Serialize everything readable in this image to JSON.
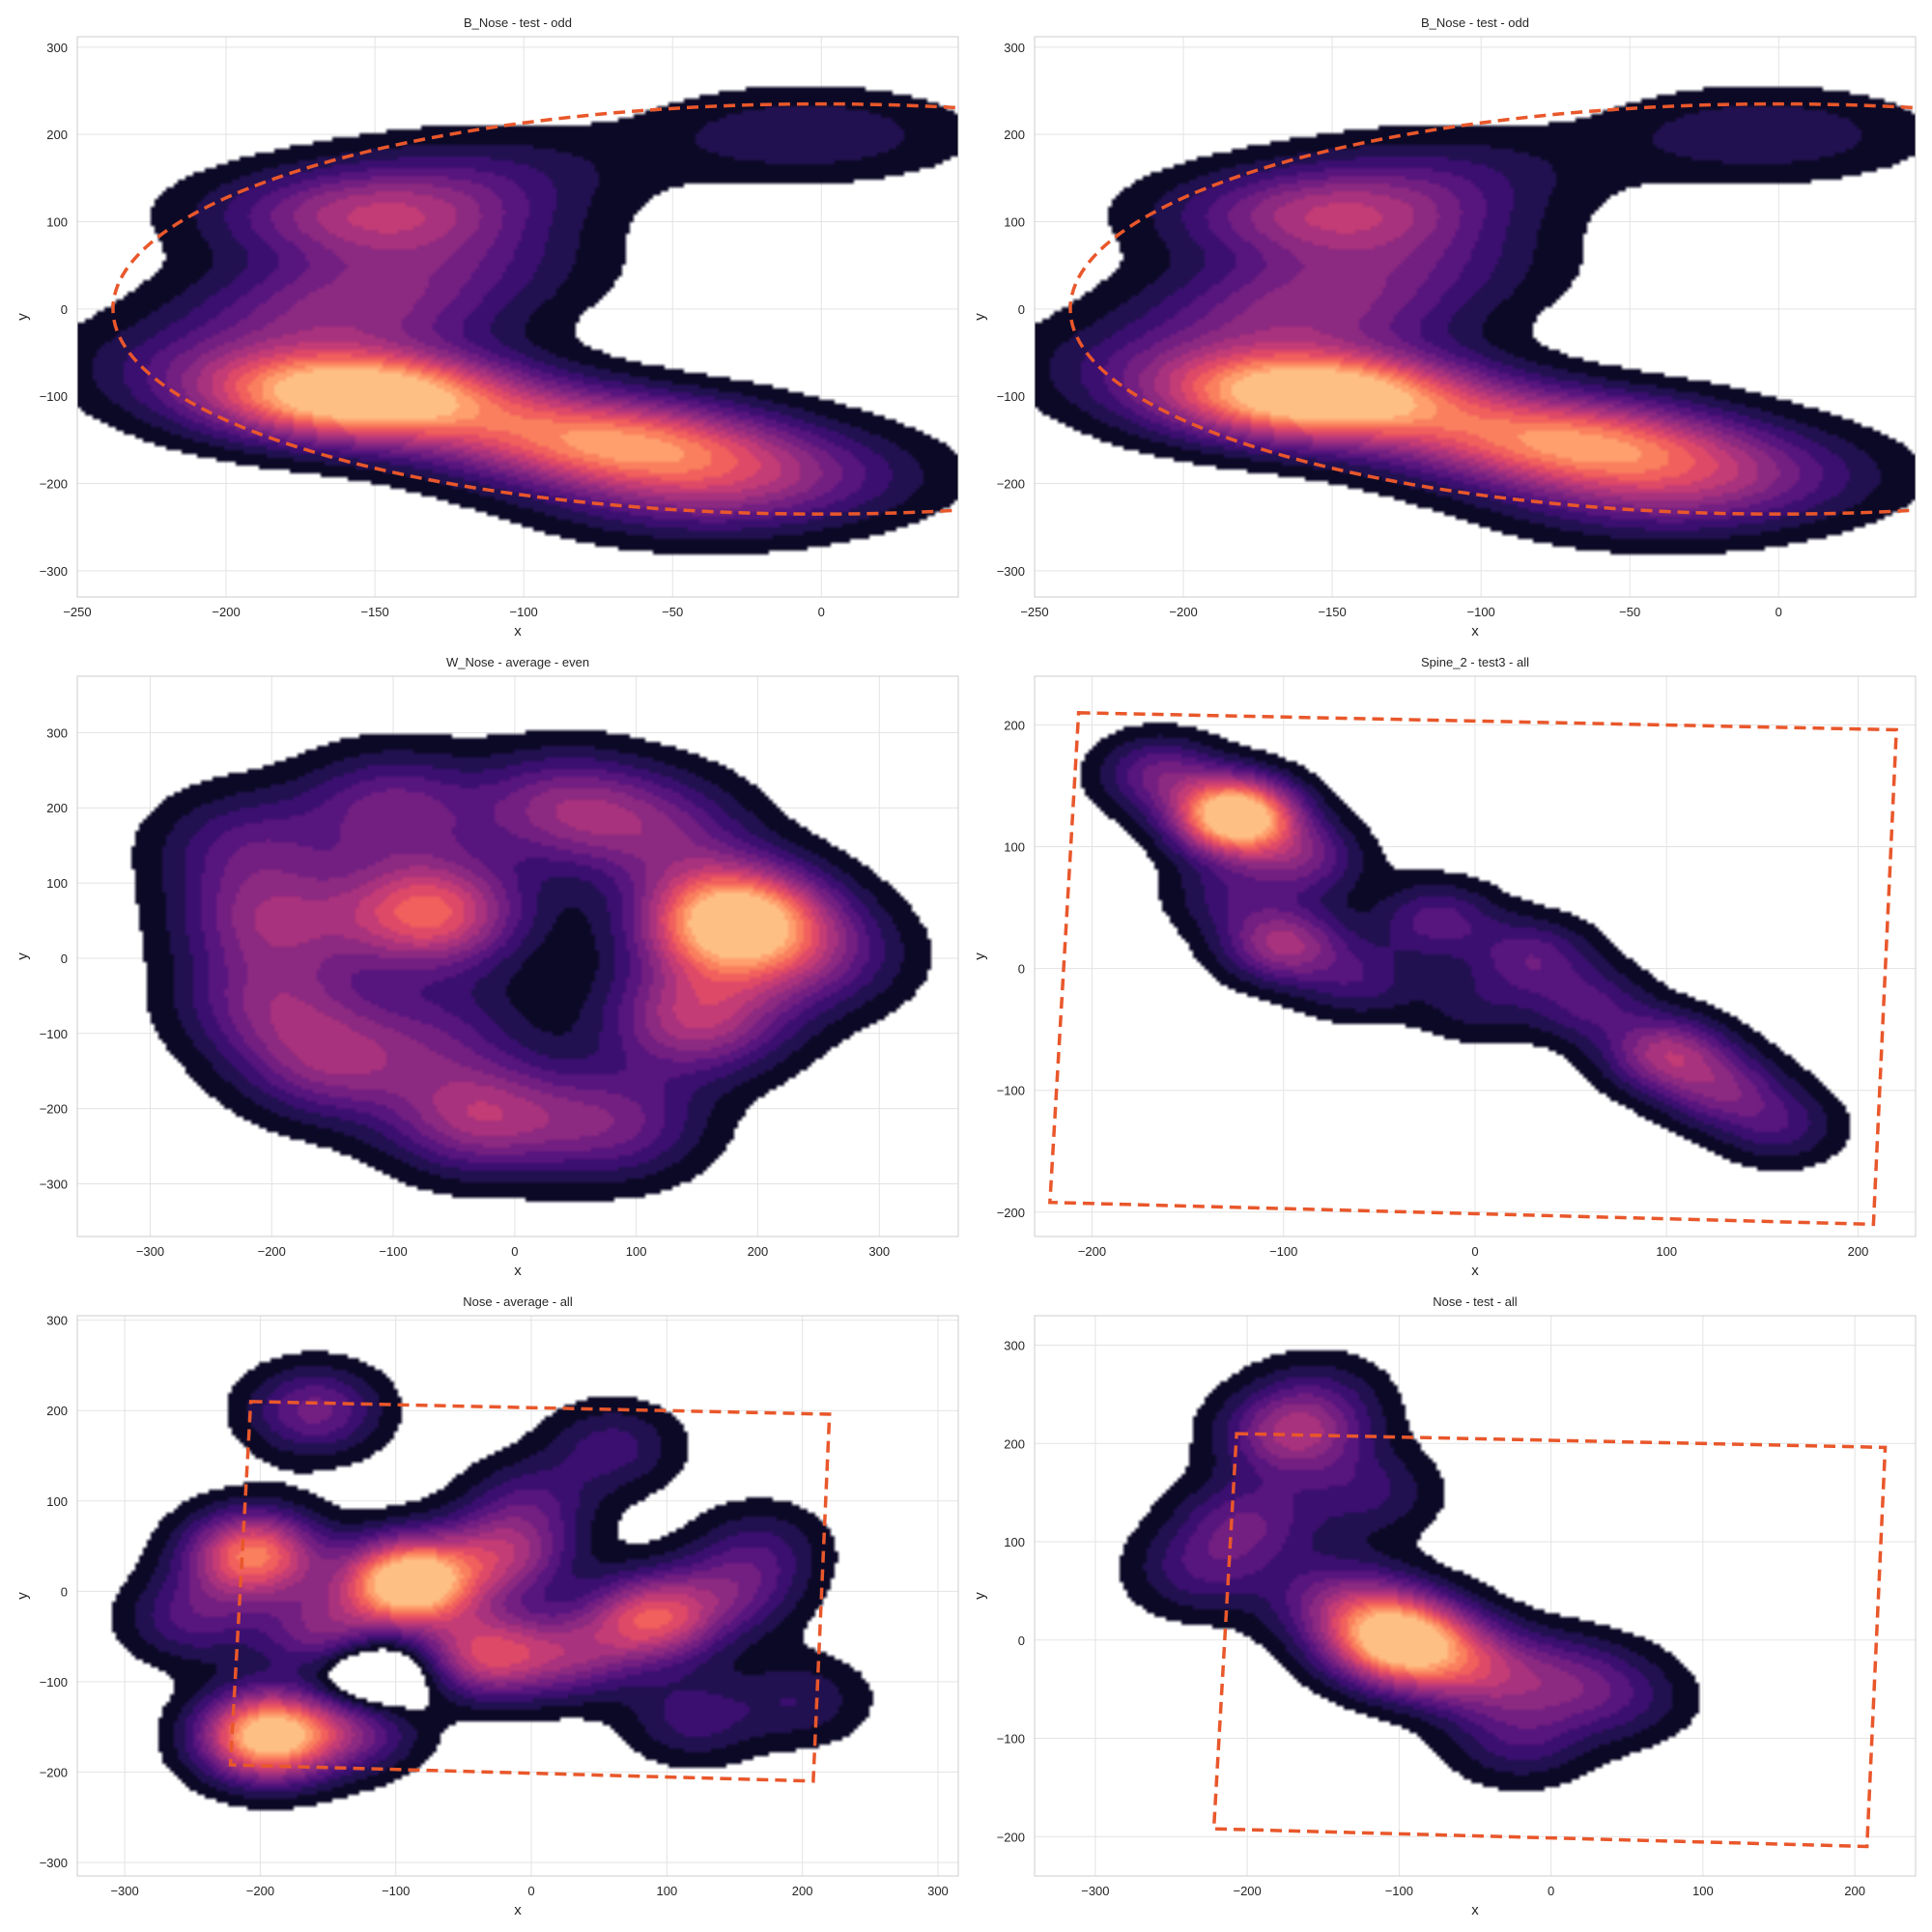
{
  "figure": {
    "layout": "3x2 grid of KDE density plots",
    "grid": true,
    "background": "#ffffff",
    "colormap": "magma",
    "overlay_color": "#e9572b"
  },
  "chart_data": [
    {
      "type": "kde-density",
      "title": "B_Nose - test - odd",
      "xlabel": "x",
      "ylabel": "y",
      "xlim": [
        -250,
        46
      ],
      "ylim": [
        -330,
        312
      ],
      "xticks": [
        "−250",
        "−200",
        "−150",
        "−100",
        "−50",
        "0"
      ],
      "yticks": [
        "−300",
        "−200",
        "−100",
        "0",
        "100",
        "200",
        "300"
      ],
      "boundary": {
        "shape": "ellipse",
        "cx": 0,
        "cy": 0,
        "rx": 238,
        "ry": 235,
        "style": "dashed"
      },
      "density": {
        "bandwidth": 36,
        "clusters": [
          [
            -155,
            -100,
            3.0
          ],
          [
            -150,
            110,
            1.4
          ],
          [
            -60,
            -160,
            1.5
          ],
          [
            -90,
            -140,
            1.0
          ],
          [
            -160,
            0,
            1.0
          ],
          [
            -200,
            -60,
            0.6
          ],
          [
            -40,
            -220,
            0.6
          ],
          [
            -15,
            -190,
            0.7
          ],
          [
            -5,
            200,
            0.55
          ],
          [
            -130,
            50,
            0.6
          ],
          [
            -110,
            160,
            0.4
          ]
        ]
      }
    },
    {
      "type": "kde-density",
      "title": "B_Nose - test - odd",
      "xlabel": "x",
      "ylabel": "y",
      "xlim": [
        -250,
        46
      ],
      "ylim": [
        -330,
        312
      ],
      "xticks": [
        "−250",
        "−200",
        "−150",
        "−100",
        "−50",
        "0"
      ],
      "yticks": [
        "−300",
        "−200",
        "−100",
        "0",
        "100",
        "200",
        "300"
      ],
      "boundary": {
        "shape": "ellipse",
        "cx": 0,
        "cy": 0,
        "rx": 238,
        "ry": 235,
        "style": "dashed"
      },
      "density": {
        "bandwidth": 36,
        "clusters": [
          [
            -155,
            -100,
            3.0
          ],
          [
            -150,
            110,
            1.4
          ],
          [
            -60,
            -160,
            1.5
          ],
          [
            -90,
            -140,
            1.0
          ],
          [
            -160,
            0,
            1.0
          ],
          [
            -200,
            -60,
            0.6
          ],
          [
            -40,
            -220,
            0.6
          ],
          [
            -15,
            -190,
            0.7
          ],
          [
            -5,
            200,
            0.55
          ],
          [
            -130,
            50,
            0.6
          ],
          [
            -110,
            160,
            0.4
          ]
        ]
      }
    },
    {
      "type": "kde-density",
      "title": "W_Nose - average - even",
      "xlabel": "x",
      "ylabel": "y",
      "xlim": [
        -360,
        365
      ],
      "ylim": [
        -370,
        375
      ],
      "xticks": [
        "−300",
        "−200",
        "−100",
        "0",
        "100",
        "200",
        "300"
      ],
      "yticks": [
        "−300",
        "−200",
        "−100",
        "0",
        "100",
        "200",
        "300"
      ],
      "boundary": null,
      "density": {
        "bandwidth": 52,
        "clusters": [
          [
            180,
            50,
            2.4
          ],
          [
            -70,
            60,
            1.6
          ],
          [
            -30,
            -210,
            1.1
          ],
          [
            150,
            -80,
            1.2
          ],
          [
            -150,
            -140,
            0.9
          ],
          [
            -200,
            50,
            0.9
          ],
          [
            -200,
            -60,
            0.8
          ],
          [
            40,
            200,
            0.9
          ],
          [
            120,
            170,
            0.7
          ],
          [
            -100,
            200,
            0.8
          ],
          [
            80,
            -220,
            0.8
          ],
          [
            -220,
            150,
            0.6
          ],
          [
            250,
            0,
            0.6
          ],
          [
            -60,
            -100,
            0.5
          ]
        ]
      }
    },
    {
      "type": "kde-density",
      "title": "Spine_2 - test3 - all",
      "xlabel": "x",
      "ylabel": "y",
      "xlim": [
        -230,
        230
      ],
      "ylim": [
        -220,
        240
      ],
      "xticks": [
        "−200",
        "−100",
        "0",
        "100",
        "200"
      ],
      "yticks": [
        "−200",
        "−100",
        "0",
        "100",
        "200"
      ],
      "boundary": {
        "shape": "polygon",
        "points": [
          [
            -207,
            210
          ],
          [
            220,
            196
          ],
          [
            208,
            -210
          ],
          [
            -222,
            -192
          ]
        ],
        "style": "dashed"
      },
      "density": {
        "bandwidth": 22,
        "clusters": [
          [
            -125,
            125,
            3.0
          ],
          [
            -165,
            160,
            0.9
          ],
          [
            -90,
            90,
            0.9
          ],
          [
            -100,
            20,
            1.3
          ],
          [
            -60,
            -10,
            0.6
          ],
          [
            -20,
            40,
            0.8
          ],
          [
            30,
            10,
            0.8
          ],
          [
            60,
            -30,
            0.7
          ],
          [
            100,
            -70,
            1.3
          ],
          [
            130,
            -100,
            0.9
          ],
          [
            160,
            -130,
            0.6
          ],
          [
            -130,
            60,
            0.5
          ],
          [
            0,
            -30,
            0.4
          ]
        ]
      }
    },
    {
      "type": "kde-density",
      "title": "Nose - average - all",
      "xlabel": "x",
      "ylabel": "y",
      "xlim": [
        -335,
        315
      ],
      "ylim": [
        -315,
        305
      ],
      "xticks": [
        "−300",
        "−200",
        "−100",
        "0",
        "100",
        "200",
        "300"
      ],
      "yticks": [
        "−300",
        "−200",
        "−100",
        "0",
        "100",
        "200",
        "300"
      ],
      "boundary": {
        "shape": "polygon",
        "points": [
          [
            -207,
            210
          ],
          [
            220,
            196
          ],
          [
            208,
            -210
          ],
          [
            -222,
            -192
          ]
        ],
        "style": "dashed"
      },
      "density": {
        "bandwidth": 34,
        "clusters": [
          [
            -90,
            10,
            2.4
          ],
          [
            -195,
            -160,
            2.2
          ],
          [
            -205,
            40,
            1.7
          ],
          [
            90,
            -30,
            1.4
          ],
          [
            -35,
            -70,
            1.3
          ],
          [
            -160,
            200,
            0.8
          ],
          [
            -150,
            -50,
            1.0
          ],
          [
            -130,
            -150,
            0.8
          ],
          [
            -20,
            40,
            1.0
          ],
          [
            30,
            -70,
            0.8
          ],
          [
            150,
            0,
            0.6
          ],
          [
            60,
            160,
            0.5
          ],
          [
            120,
            -140,
            0.5
          ],
          [
            200,
            -120,
            0.4
          ],
          [
            -250,
            -30,
            0.6
          ],
          [
            0,
            100,
            0.5
          ],
          [
            170,
            50,
            0.4
          ],
          [
            -120,
            -90,
            -0.9
          ]
        ]
      }
    },
    {
      "type": "kde-density",
      "title": "Nose - test - all",
      "xlabel": "x",
      "ylabel": "y",
      "xlim": [
        -340,
        240
      ],
      "ylim": [
        -240,
        330
      ],
      "xticks": [
        "−300",
        "−200",
        "−100",
        "0",
        "100",
        "200"
      ],
      "yticks": [
        "−200",
        "−100",
        "0",
        "100",
        "200",
        "300"
      ],
      "boundary": {
        "shape": "polygon",
        "points": [
          [
            -207,
            210
          ],
          [
            220,
            196
          ],
          [
            208,
            -210
          ],
          [
            -222,
            -192
          ]
        ],
        "style": "dashed"
      },
      "density": {
        "bandwidth": 32,
        "clusters": [
          [
            -100,
            0,
            3.0
          ],
          [
            -170,
            210,
            1.4
          ],
          [
            -200,
            120,
            0.9
          ],
          [
            -230,
            70,
            0.7
          ],
          [
            -50,
            -30,
            1.3
          ],
          [
            10,
            -40,
            0.8
          ],
          [
            50,
            -60,
            0.5
          ],
          [
            -140,
            40,
            1.0
          ],
          [
            -120,
            150,
            0.6
          ],
          [
            -20,
            -100,
            0.7
          ],
          [
            -150,
            250,
            0.4
          ]
        ]
      }
    }
  ]
}
